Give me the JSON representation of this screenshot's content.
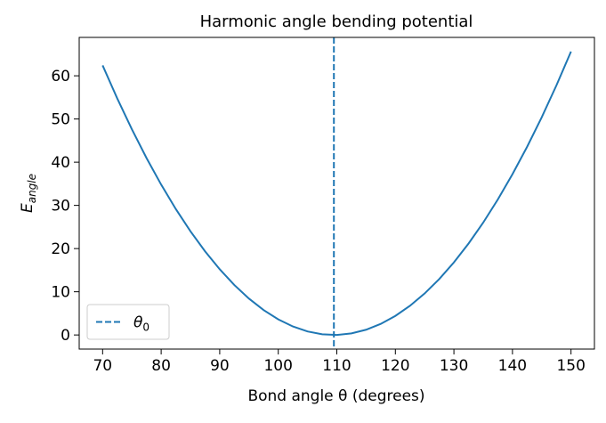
{
  "chart_data": {
    "type": "line",
    "title": "Harmonic angle bending potential",
    "xlabel": "Bond angle θ (degrees)",
    "ylabel": {
      "main": "E",
      "sub": "angle"
    },
    "x": [
      70,
      72.5,
      75,
      77.5,
      80,
      82.5,
      85,
      87.5,
      90,
      92.5,
      95,
      97.5,
      100,
      102.5,
      105,
      107.5,
      110,
      112.5,
      115,
      117.5,
      120,
      122.5,
      125,
      127.5,
      130,
      132.5,
      135,
      137.5,
      140,
      142.5,
      145,
      147.5,
      150
    ],
    "series": [
      {
        "color": "#1f77b4",
        "values": [
          62.41,
          54.76,
          47.61,
          40.96,
          34.81,
          29.16,
          24.01,
          19.36,
          15.21,
          11.56,
          8.41,
          5.76,
          3.61,
          1.96,
          0.81,
          0.16,
          0.01,
          0.36,
          1.21,
          2.56,
          4.41,
          6.76,
          9.61,
          12.96,
          16.81,
          21.16,
          26.01,
          31.36,
          37.21,
          43.56,
          50.41,
          57.76,
          65.61
        ]
      }
    ],
    "vline": {
      "x": 109.5,
      "color": "#1f77b4",
      "label": "θ",
      "label_sub": "0"
    },
    "legend": "lower left",
    "xlim": [
      66,
      154
    ],
    "xticks": [
      70,
      80,
      90,
      100,
      110,
      120,
      130,
      140,
      150
    ],
    "ylim": [
      -3.27,
      68.89
    ],
    "yticks": [
      0,
      10,
      20,
      30,
      40,
      50,
      60
    ]
  }
}
